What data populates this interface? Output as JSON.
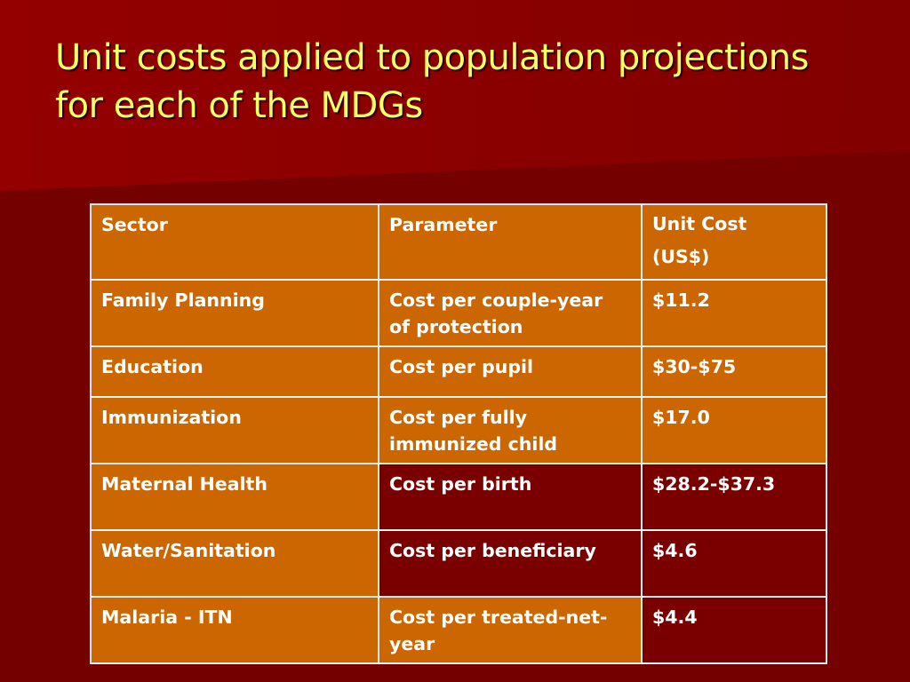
{
  "slide": {
    "title_line1": "Unit costs applied to population projections",
    "title_line2": "for each of the MDGs"
  },
  "colors": {
    "background": "#7a0000",
    "background_light": "#8e0000",
    "title": "#ffff66",
    "cell_orange": "#cc6600",
    "cell_border": "#f2f2f2",
    "cell_text": "#ffffff"
  },
  "table": {
    "headers": {
      "sector": "Sector",
      "parameter": "Parameter",
      "unit_cost_line1": "Unit Cost",
      "unit_cost_line2": "(US$)"
    },
    "rows": [
      {
        "sector": "Family Planning",
        "parameter_line1": "Cost per couple-year",
        "parameter_line2": "of protection",
        "cost": "$11.2"
      },
      {
        "sector": "Education",
        "parameter_line1": "Cost per pupil",
        "parameter_line2": "",
        "cost": "$30-$75"
      },
      {
        "sector": "Immunization",
        "parameter_line1": "Cost per fully",
        "parameter_line2": "immunized child",
        "cost": "$17.0"
      },
      {
        "sector": "Maternal Health",
        "parameter_line1": "Cost per birth",
        "parameter_line2": "",
        "cost": "$28.2-$37.3"
      },
      {
        "sector": "Water/Sanitation",
        "parameter_line1": "Cost per beneficiary",
        "parameter_line2": "",
        "cost": "$4.6"
      },
      {
        "sector": "Malaria - ITN",
        "parameter_line1": "Cost per treated-net-",
        "parameter_line2": "year",
        "cost": "$4.4"
      }
    ]
  }
}
